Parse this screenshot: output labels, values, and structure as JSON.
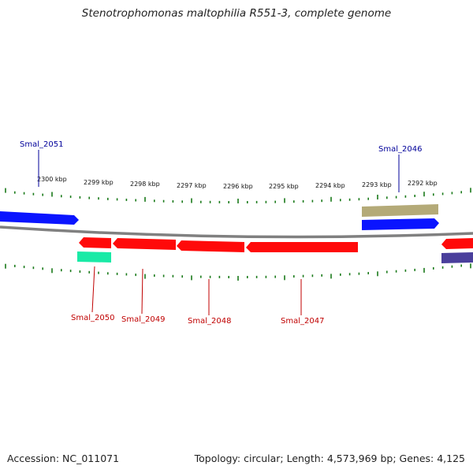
{
  "title": "Stenotrophomonas maltophilia R551-3, complete genome",
  "footer": {
    "accession": "Accession: NC_011071",
    "summary": "Topology: circular; Length: 4,573,969 bp; Genes: 4,125"
  },
  "colors": {
    "backbone": "#808080",
    "tick": "#1a7a1a",
    "forward_gene": "#0a14ff",
    "reverse_gene": "#ff0a0a",
    "trna": "#b4aa78",
    "rrna": "#19eaa6",
    "other": "#4a3f9c",
    "label_forward": "#00009a",
    "label_reverse": "#c00000"
  },
  "ticks": [
    {
      "label": "2300 kbp"
    },
    {
      "label": "2299 kbp"
    },
    {
      "label": "2298 kbp"
    },
    {
      "label": "2297 kbp"
    },
    {
      "label": "2296 kbp"
    },
    {
      "label": "2295 kbp"
    },
    {
      "label": "2294 kbp"
    },
    {
      "label": "2293 kbp"
    },
    {
      "label": "2292 kbp"
    }
  ],
  "gene_labels": [
    {
      "name": "Smal_2051"
    },
    {
      "name": "Smal_2046"
    },
    {
      "name": "Smal_2050"
    },
    {
      "name": "Smal_2049"
    },
    {
      "name": "Smal_2048"
    },
    {
      "name": "Smal_2047"
    }
  ]
}
